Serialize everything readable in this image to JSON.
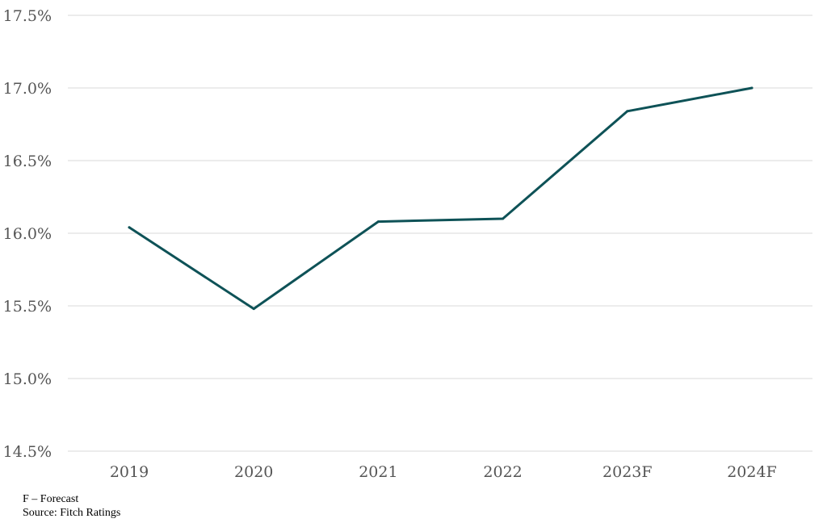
{
  "chart_data": {
    "type": "line",
    "title": "",
    "xlabel": "",
    "ylabel": "",
    "categories": [
      "2019",
      "2020",
      "2021",
      "2022",
      "2023F",
      "2024F"
    ],
    "series": [
      {
        "values": [
          16.04,
          15.48,
          16.08,
          16.1,
          16.84,
          17.0
        ],
        "color": "#0e5257"
      }
    ],
    "ylim": [
      14.5,
      17.5
    ],
    "yticks": [
      "14.5%",
      "15.0%",
      "15.5%",
      "16.0%",
      "16.5%",
      "17.0%",
      "17.5%"
    ],
    "grid": true,
    "legend": "none"
  },
  "notes": {
    "forecast_note": "F – Forecast",
    "source": "Source: Fitch Ratings"
  }
}
